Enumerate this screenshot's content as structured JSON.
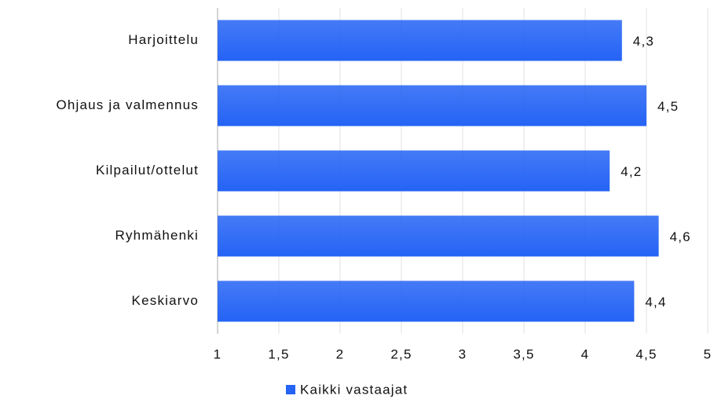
{
  "chart_data": {
    "type": "barh",
    "categories": [
      "Harjoittelu",
      "Ohjaus ja valmennus",
      "Kilpailut/ottelut",
      "Ryhmähenki",
      "Keskiarvo"
    ],
    "series": [
      {
        "name": "Kaikki vastaajat",
        "color": "#2463f5",
        "values": [
          4.3,
          4.5,
          4.2,
          4.6,
          4.4
        ],
        "value_labels": [
          "4,3",
          "4,5",
          "4,2",
          "4,6",
          "4,4"
        ]
      }
    ],
    "xlim": [
      1,
      5
    ],
    "xticks": [
      1,
      {
        "value": 1.5,
        "label": "1,5"
      },
      2,
      {
        "value": 2.5,
        "label": "2,5"
      },
      3,
      {
        "value": 3.5,
        "label": "3,5"
      },
      4,
      {
        "value": 4.5,
        "label": "4,5"
      },
      5
    ],
    "grid": true,
    "legend": "bottom"
  }
}
